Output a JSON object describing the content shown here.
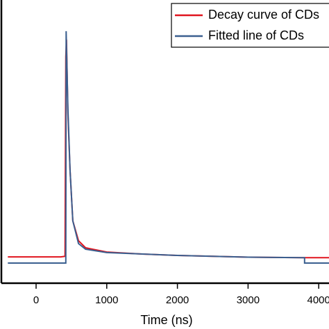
{
  "chart_data": {
    "type": "line",
    "x_label": "Time (ns)",
    "xlim": [
      -500,
      4500
    ],
    "xticks": [
      0,
      1000,
      2000,
      3000,
      4000
    ],
    "ylim": [
      0,
      100
    ],
    "legend": "upper right",
    "series": [
      {
        "name": "Decay curve of CDs",
        "color": "#e0141e",
        "x": [
          -400,
          350,
          410,
          420,
          430,
          450,
          480,
          520,
          600,
          700,
          1000,
          1500,
          2000,
          3000,
          3800,
          4200
        ],
        "values": [
          9.3,
          9.3,
          9.5,
          80,
          86,
          60,
          40,
          22,
          15,
          12.5,
          11,
          10.3,
          9.8,
          9.2,
          9.0,
          9.0
        ]
      },
      {
        "name": "Fitted line of CDs",
        "color": "#3a5f8f",
        "x": [
          -400,
          420,
          425,
          450,
          480,
          520,
          600,
          700,
          1000,
          2000,
          3000,
          3800,
          3800,
          4200
        ],
        "values": [
          7.1,
          7.1,
          89,
          62,
          40,
          22,
          14,
          12,
          10.8,
          9.8,
          9.2,
          9.0,
          7.1,
          7.1
        ]
      }
    ]
  }
}
